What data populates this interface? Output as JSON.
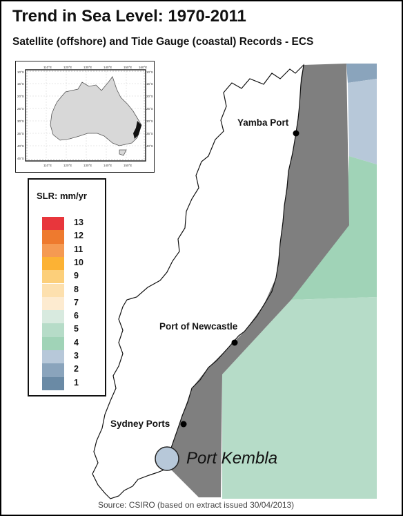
{
  "header": {
    "title": "Trend in Sea Level: 1970-2011",
    "subtitle": "Satellite (offshore) and Tide Gauge (coastal) Records - ECS"
  },
  "places": {
    "yamba": "Yamba Port",
    "newcastle": "Port of Newcastle",
    "sydney": "Sydney Ports",
    "kembla": "Port Kembla"
  },
  "inset": {
    "lon_labels": [
      "110°E",
      "120°E",
      "130°E",
      "140°E",
      "150°E",
      "160°E"
    ],
    "lat_labels": [
      "10°S",
      "15°S",
      "20°S",
      "25°S",
      "30°S",
      "35°S",
      "40°S",
      "45°S"
    ]
  },
  "legend": {
    "title": "SLR: mm/yr",
    "items": [
      {
        "value": "13",
        "color": "#e8363c"
      },
      {
        "value": "12",
        "color": "#ee7a2e"
      },
      {
        "value": "11",
        "color": "#f59a52"
      },
      {
        "value": "10",
        "color": "#fcb234"
      },
      {
        "value": "9",
        "color": "#fccf7a"
      },
      {
        "value": "8",
        "color": "#fde0ae"
      },
      {
        "value": "7",
        "color": "#fdebd0"
      },
      {
        "value": "6",
        "color": "#d8eadf"
      },
      {
        "value": "5",
        "color": "#b6dcc8"
      },
      {
        "value": "4",
        "color": "#a0d3b7"
      },
      {
        "value": "3",
        "color": "#b7c8d9"
      },
      {
        "value": "2",
        "color": "#8aa4bc"
      },
      {
        "value": "1",
        "color": "#6a8aa5"
      }
    ]
  },
  "source": "Source: CSIRO (based on extract issued 30/04/2013)"
}
